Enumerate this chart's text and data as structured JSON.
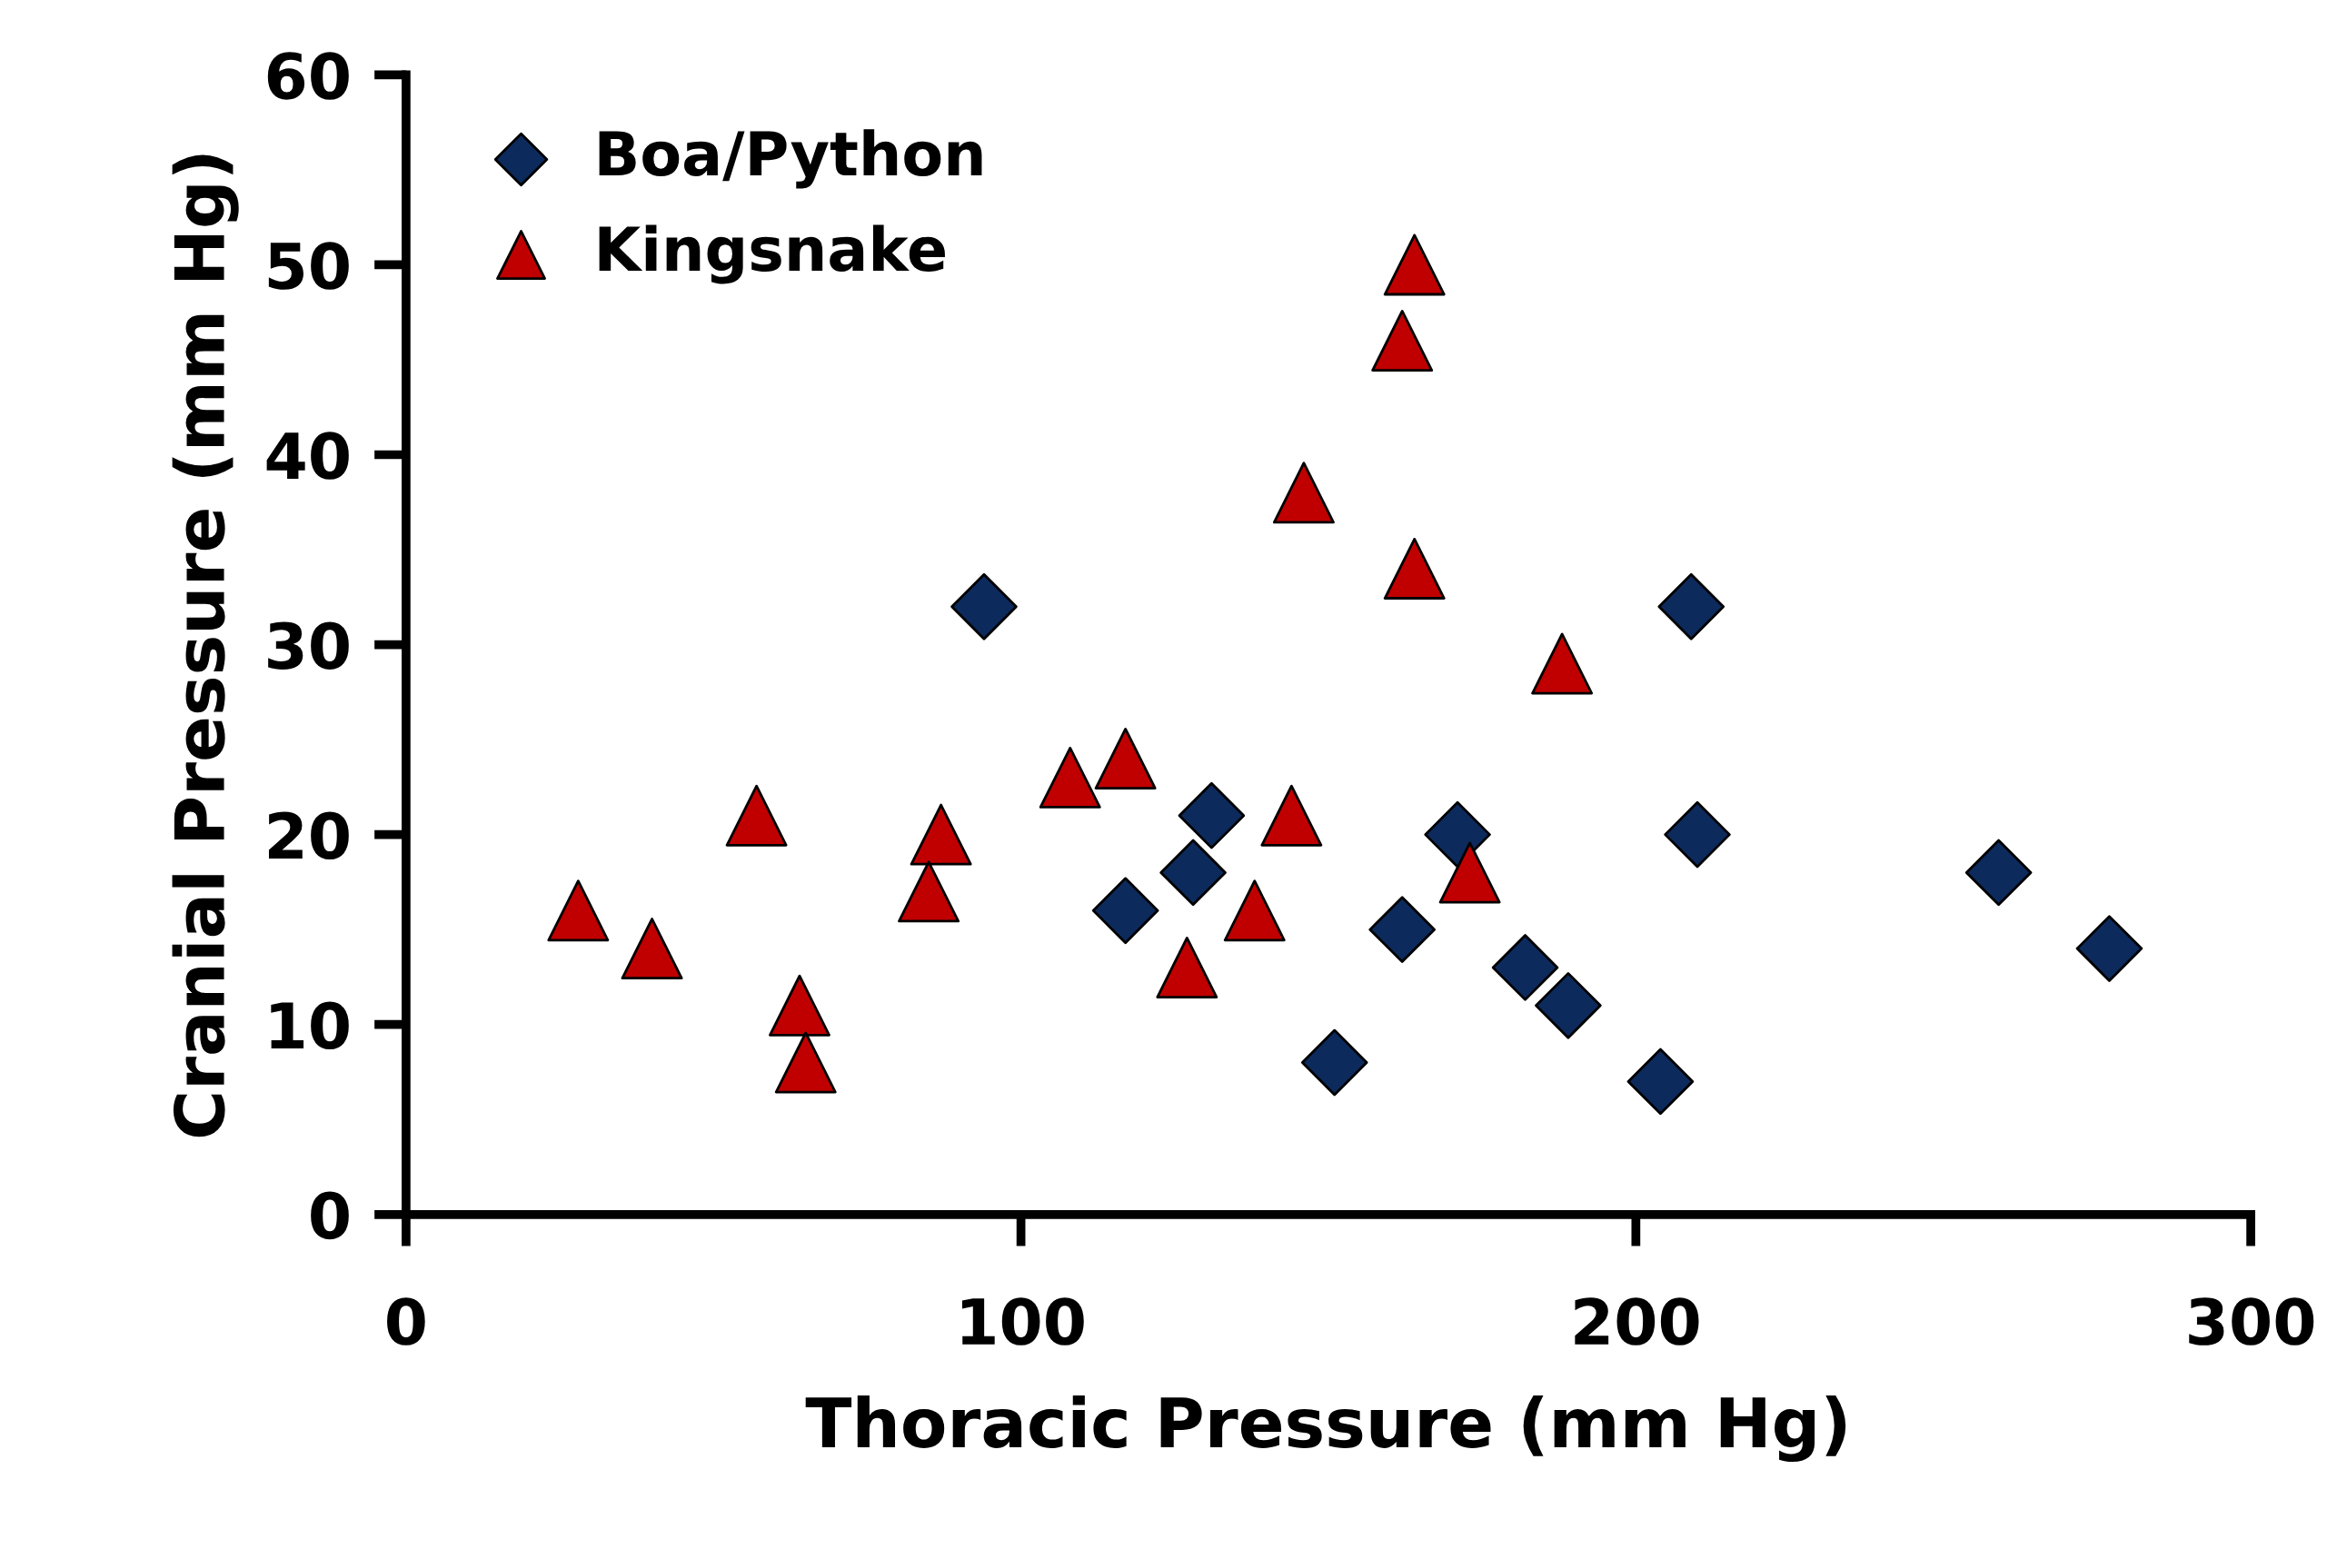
{
  "chart_data": {
    "type": "scatter",
    "xlabel": "Thoracic Pressure (mm Hg)",
    "ylabel": "Cranial Pressure (mm Hg)",
    "xlim": [
      0,
      300
    ],
    "ylim": [
      0,
      60
    ],
    "xticks": [
      0,
      100,
      200,
      300
    ],
    "yticks": [
      0,
      10,
      20,
      30,
      40,
      50,
      60
    ],
    "grid": false,
    "legend": "top left",
    "series": [
      {
        "name": "Boa/Python",
        "color": "#0d2a5c",
        "marker": "diamond",
        "x": [
          94,
          209,
          131,
          128,
          117,
          171,
          210,
          162,
          182,
          189,
          151,
          204,
          259,
          277
        ],
        "values": [
          32,
          32,
          21,
          18,
          16,
          20,
          20,
          15,
          13,
          11,
          8,
          7,
          18,
          14
        ]
      },
      {
        "name": "Kingsnake",
        "color": "#c00000",
        "marker": "triangle",
        "x": [
          164,
          162,
          146,
          164,
          188,
          117,
          108,
          57,
          87,
          144,
          85,
          173,
          138,
          28,
          40,
          127,
          64,
          65
        ],
        "values": [
          50,
          46,
          38,
          34,
          29,
          24,
          23,
          21,
          20,
          21,
          17,
          18,
          16,
          16,
          14,
          13,
          11,
          8
        ]
      }
    ]
  }
}
